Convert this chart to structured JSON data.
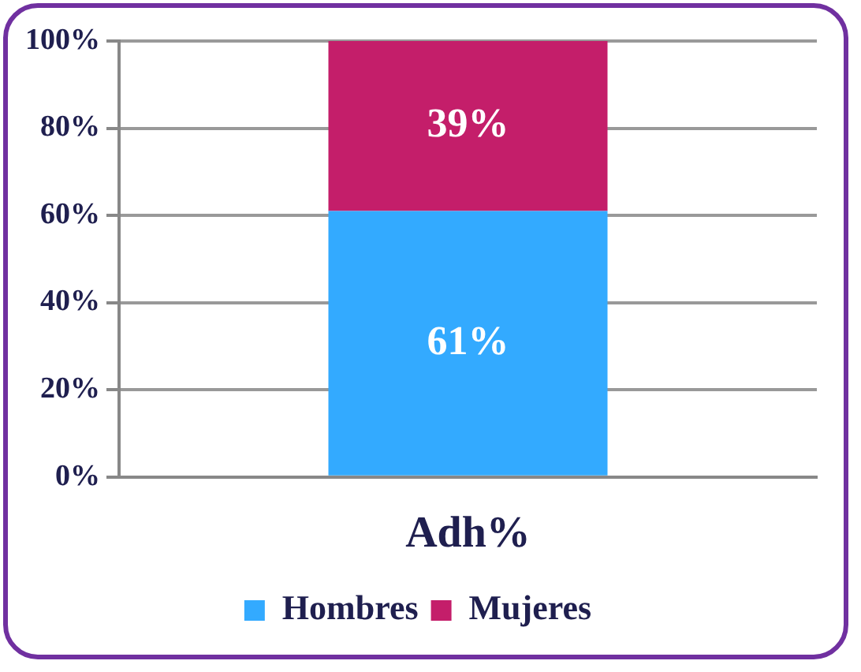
{
  "chart_data": {
    "type": "bar",
    "stacked": true,
    "categories": [
      "Adh%"
    ],
    "series": [
      {
        "name": "Hombres",
        "color": "#33aaff",
        "values": [
          61
        ],
        "value_labels": [
          "61%"
        ]
      },
      {
        "name": "Mujeres",
        "color": "#c41e6a",
        "values": [
          39
        ],
        "value_labels": [
          "39%"
        ]
      }
    ],
    "ylim": [
      0,
      100
    ],
    "yticks": [
      {
        "value": 0,
        "label": "0%"
      },
      {
        "value": 20,
        "label": "20%"
      },
      {
        "value": 40,
        "label": "40%"
      },
      {
        "value": 60,
        "label": "60%"
      },
      {
        "value": 80,
        "label": "80%"
      },
      {
        "value": 100,
        "label": "100%"
      }
    ],
    "grid": "y",
    "legend": "bottom"
  }
}
